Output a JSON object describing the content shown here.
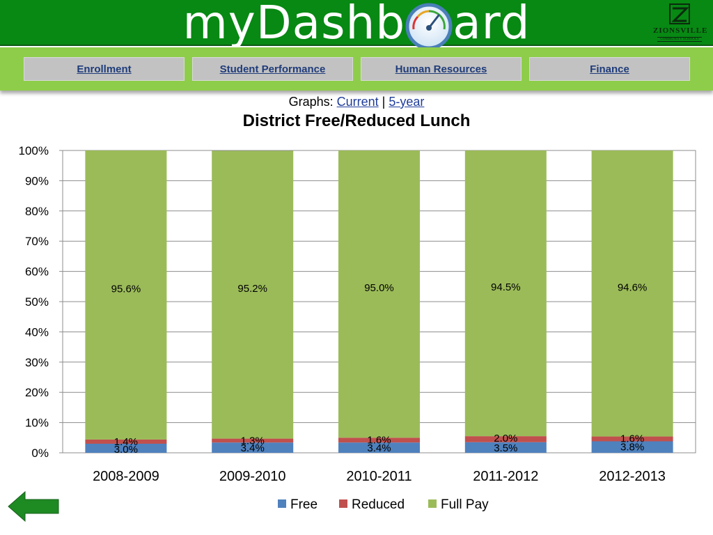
{
  "header": {
    "brand_left": "myDashb",
    "brand_right": "ard",
    "logo_name": "ZIONSVILLE",
    "logo_sub": "COMMUNITY SCHOOLS"
  },
  "nav": {
    "items": [
      {
        "label": "Enrollment"
      },
      {
        "label": "Student Performance"
      },
      {
        "label": "Human Resources"
      },
      {
        "label": "Finance"
      }
    ]
  },
  "graphs": {
    "prefix": "Graphs:",
    "current_label": "Current",
    "separator": "|",
    "five_year_label": "5-year"
  },
  "colors": {
    "header_green": "#078913",
    "nav_green": "#8ecd4a",
    "free": "#4f81bd",
    "reduced": "#c0504d",
    "full_pay": "#9bbb59",
    "back_arrow": "#1e8a22"
  },
  "icons": {
    "gauge": "speedometer-icon",
    "back": "back-arrow-icon",
    "logo": "zionsville-logo"
  },
  "chart_data": {
    "type": "bar",
    "stacked": true,
    "title": "District Free/Reduced Lunch",
    "categories": [
      "2008-2009",
      "2009-2010",
      "2010-2011",
      "2011-2012",
      "2012-2013"
    ],
    "series": [
      {
        "name": "Free",
        "values": [
          3.0,
          3.4,
          3.4,
          3.5,
          3.8
        ],
        "labels": [
          "3.0%",
          "3.4%",
          "3.4%",
          "3.5%",
          "3.8%"
        ]
      },
      {
        "name": "Reduced",
        "values": [
          1.4,
          1.3,
          1.6,
          2.0,
          1.6
        ],
        "labels": [
          "1.4%",
          "1.3%",
          "1.6%",
          "2.0%",
          "1.6%"
        ]
      },
      {
        "name": "Full Pay",
        "values": [
          95.6,
          95.2,
          95.0,
          94.5,
          94.6
        ],
        "labels": [
          "95.6%",
          "95.2%",
          "95.0%",
          "94.5%",
          "94.6%"
        ]
      }
    ],
    "ylim": [
      0,
      100
    ],
    "yticks": [
      "0%",
      "10%",
      "20%",
      "30%",
      "40%",
      "50%",
      "60%",
      "70%",
      "80%",
      "90%",
      "100%"
    ],
    "grid": true,
    "legend": "bottom"
  }
}
